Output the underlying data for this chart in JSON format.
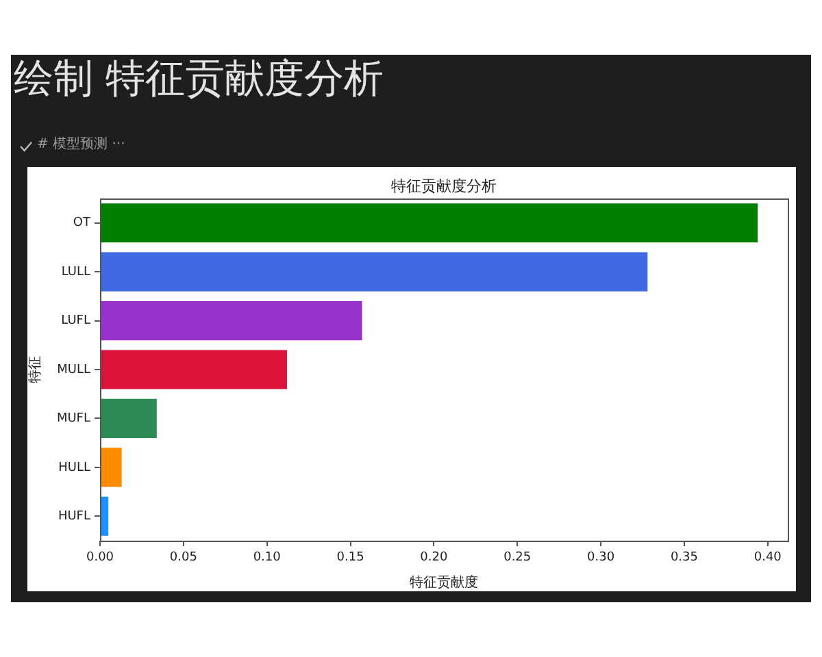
{
  "chart_data": {
    "type": "bar",
    "orientation": "horizontal",
    "title": "特征贡献度分析",
    "xlabel": "特征贡献度",
    "ylabel": "特征",
    "annotations": [
      "绘制 特征贡献度分析",
      "# 模型预测 ···"
    ],
    "categories": [
      "OT",
      "LULL",
      "LUFL",
      "MULL",
      "MUFL",
      "HULL",
      "HUFL"
    ],
    "values": [
      0.394,
      0.328,
      0.157,
      0.112,
      0.034,
      0.013,
      0.005
    ],
    "colors": [
      "#008000",
      "#4169e1",
      "#9932cc",
      "#dc143c",
      "#2e8b57",
      "#ff8c00",
      "#1e90ff"
    ],
    "xlim": [
      0,
      0.412
    ],
    "xticks": [
      {
        "value": 0,
        "label": "0.00"
      },
      0.05,
      {
        "value": 0.1,
        "label": "0.10"
      },
      0.15,
      {
        "value": 0.2,
        "label": "0.20"
      },
      0.25,
      {
        "value": 0.3,
        "label": "0.30"
      },
      0.35,
      {
        "value": 0.4,
        "label": "0.40"
      }
    ],
    "grid": false,
    "legend": false
  }
}
